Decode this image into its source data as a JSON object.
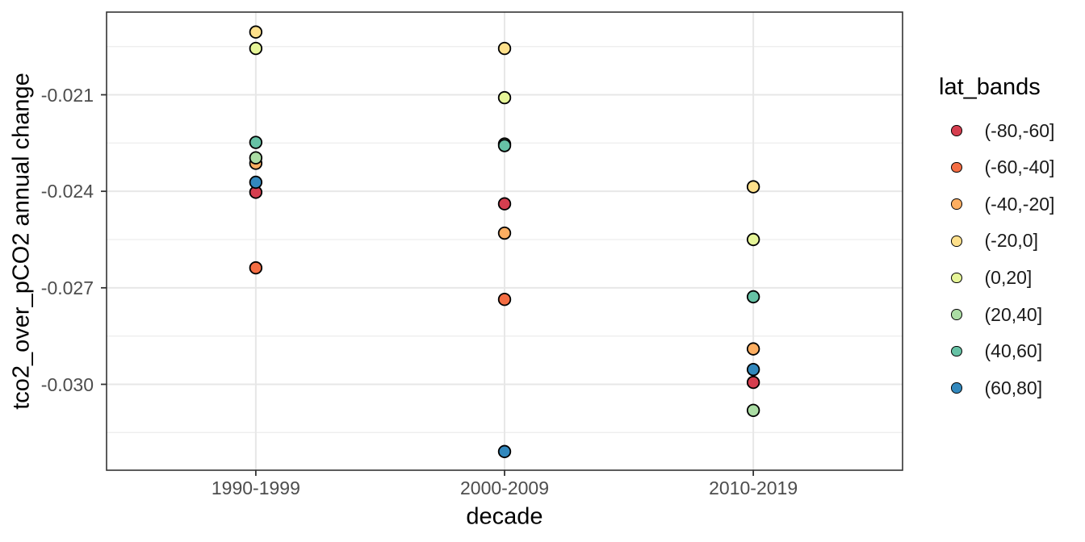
{
  "chart_data": {
    "type": "scatter",
    "title": "",
    "xlabel": "decade",
    "ylabel": "tco2_over_pCO2 annual change",
    "legend_title": "lat_bands",
    "legend_position": "right",
    "categories": [
      "1990-1999",
      "2000-2009",
      "2010-2019"
    ],
    "ylim": [
      -0.03267,
      -0.01843
    ],
    "y_major_ticks": [
      -0.021,
      -0.024,
      -0.027,
      -0.03
    ],
    "y_tick_labels": [
      "-0.021",
      "-0.024",
      "-0.027",
      "-0.030"
    ],
    "y_minor_ticks": [
      -0.0195,
      -0.0225,
      -0.0255,
      -0.0285,
      -0.0315
    ],
    "grid": "on",
    "series": [
      {
        "name": "(-80,-60]",
        "color": "#d53e4f",
        "values": [
          -0.02403,
          -0.02439,
          -0.02994
        ]
      },
      {
        "name": "(-60,-40]",
        "color": "#f46d43",
        "values": [
          -0.02638,
          -0.02736,
          null
        ]
      },
      {
        "name": "(-40,-20]",
        "color": "#fdae61",
        "values": [
          -0.02313,
          -0.0253,
          -0.0289
        ]
      },
      {
        "name": "(-20,0]",
        "color": "#fee08b",
        "values": [
          -0.01905,
          -0.01956,
          -0.02386
        ]
      },
      {
        "name": "(0,20]",
        "color": "#e6f598",
        "values": [
          -0.01956,
          -0.02109,
          -0.0255
        ]
      },
      {
        "name": "(20,40]",
        "color": "#abdda4",
        "values": [
          -0.02296,
          -0.02253,
          -0.03081
        ]
      },
      {
        "name": "(40,60]",
        "color": "#66c2a5",
        "values": [
          -0.02248,
          -0.02258,
          -0.02728
        ]
      },
      {
        "name": "(60,80]",
        "color": "#3288bd",
        "values": [
          -0.02372,
          -0.03209,
          -0.02954
        ]
      }
    ],
    "style": {
      "point_stroke": "#000000",
      "grid_major_color": "#e7e7e7",
      "grid_minor_color": "#eeeeee",
      "panel_border_color": "#333333",
      "tick_mark_color": "#333333",
      "axis_text_color": "#4d4d4d",
      "title_color": "#000000",
      "background": "#ffffff"
    }
  }
}
